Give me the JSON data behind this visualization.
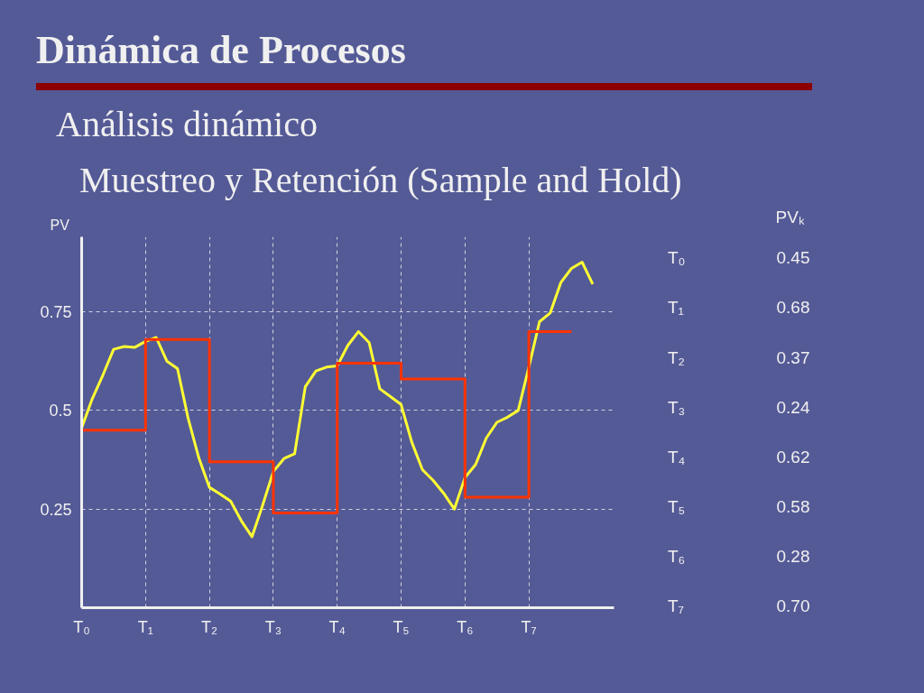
{
  "chart_data": [
    {
      "type": "line",
      "title": "Dinámica de Procesos",
      "subtitle": "Análisis dinámico",
      "annotations": [
        "Muestreo y Retención (Sample and Hold)"
      ],
      "ylabel": "PV",
      "categories": [
        "T₀",
        null,
        null,
        null,
        null,
        null,
        "T₁",
        null,
        null,
        null,
        null,
        null,
        "T₂",
        null,
        null,
        null,
        null,
        null,
        "T₃",
        null,
        null,
        null,
        null,
        null,
        "T₄",
        null,
        null,
        null,
        null,
        null,
        "T₅",
        null,
        null,
        null,
        null,
        null,
        "T₆",
        null,
        null,
        null,
        null,
        null,
        "T₇",
        null,
        null,
        null,
        null,
        null,
        null
      ],
      "ylim": [
        0,
        0.94
      ],
      "yticks": [
        0.25,
        0.5,
        0.75
      ],
      "grid": true,
      "line_style": "solid",
      "series": [
        {
          "color": "#ffff33",
          "values": [
            0.456,
            0.53,
            0.59,
            0.655,
            0.662,
            0.66,
            0.675,
            0.685,
            0.625,
            0.606,
            0.48,
            0.38,
            0.305,
            0.288,
            0.27,
            0.22,
            0.18,
            0.26,
            0.345,
            0.378,
            0.39,
            0.56,
            0.6,
            0.61,
            0.613,
            0.665,
            0.7,
            0.672,
            0.555,
            0.535,
            0.515,
            0.42,
            0.35,
            0.323,
            0.29,
            0.25,
            0.33,
            0.363,
            0.43,
            0.47,
            0.483,
            0.5,
            0.61,
            0.725,
            0.747,
            0.824,
            0.86,
            0.876,
            0.82
          ]
        },
        {
          "type": "step",
          "color": "#ff3300",
          "values": [
            0.45,
            0.45,
            0.45,
            0.45,
            0.45,
            0.45,
            0.68,
            0.68,
            0.68,
            0.68,
            0.68,
            0.68,
            0.37,
            0.37,
            0.37,
            0.37,
            0.37,
            0.37,
            0.24,
            0.24,
            0.24,
            0.24,
            0.24,
            0.24,
            0.62,
            0.62,
            0.62,
            0.62,
            0.62,
            0.62,
            0.58,
            0.58,
            0.58,
            0.58,
            0.58,
            0.58,
            0.28,
            0.28,
            0.28,
            0.28,
            0.28,
            0.28,
            0.7,
            0.7,
            0.7,
            0.7,
            0.7,
            null,
            null
          ]
        }
      ]
    },
    {
      "type": "other",
      "annotations": [
        "PVₖ",
        "T₀",
        "0.45",
        "T₁",
        "0.68",
        "T₂",
        "0.37",
        "T₃",
        "0.24",
        "T₄",
        "0.62",
        "T₅",
        "0.58",
        "T₆",
        "0.28",
        "T₇",
        "0.70"
      ]
    }
  ]
}
